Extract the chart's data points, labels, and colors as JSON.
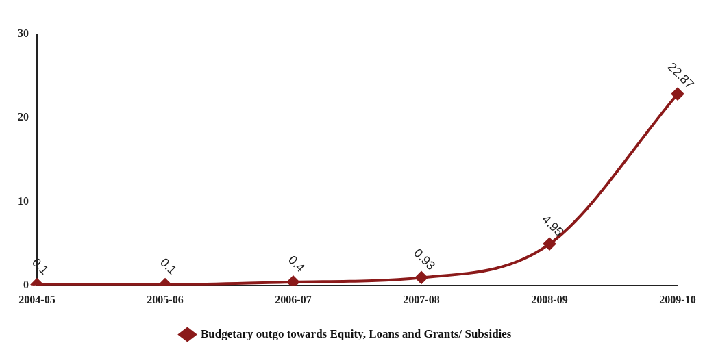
{
  "chart_data": {
    "type": "line",
    "categories": [
      "2004-05",
      "2005-06",
      "2006-07",
      "2007-08",
      "2008-09",
      "2009-10"
    ],
    "series": [
      {
        "name": "Budgetary outgo towards Equity, Loans and Grants/ Subsidies",
        "color": "#8b1a1a",
        "values": [
          0.1,
          0.1,
          0.4,
          0.93,
          4.95,
          22.87
        ]
      }
    ],
    "ylim": [
      0,
      30
    ],
    "yticks": [
      0,
      10,
      20,
      30
    ],
    "grid": false,
    "legend": "bottom",
    "marker": "diamond",
    "line_style": "solid",
    "data_labels": true
  }
}
